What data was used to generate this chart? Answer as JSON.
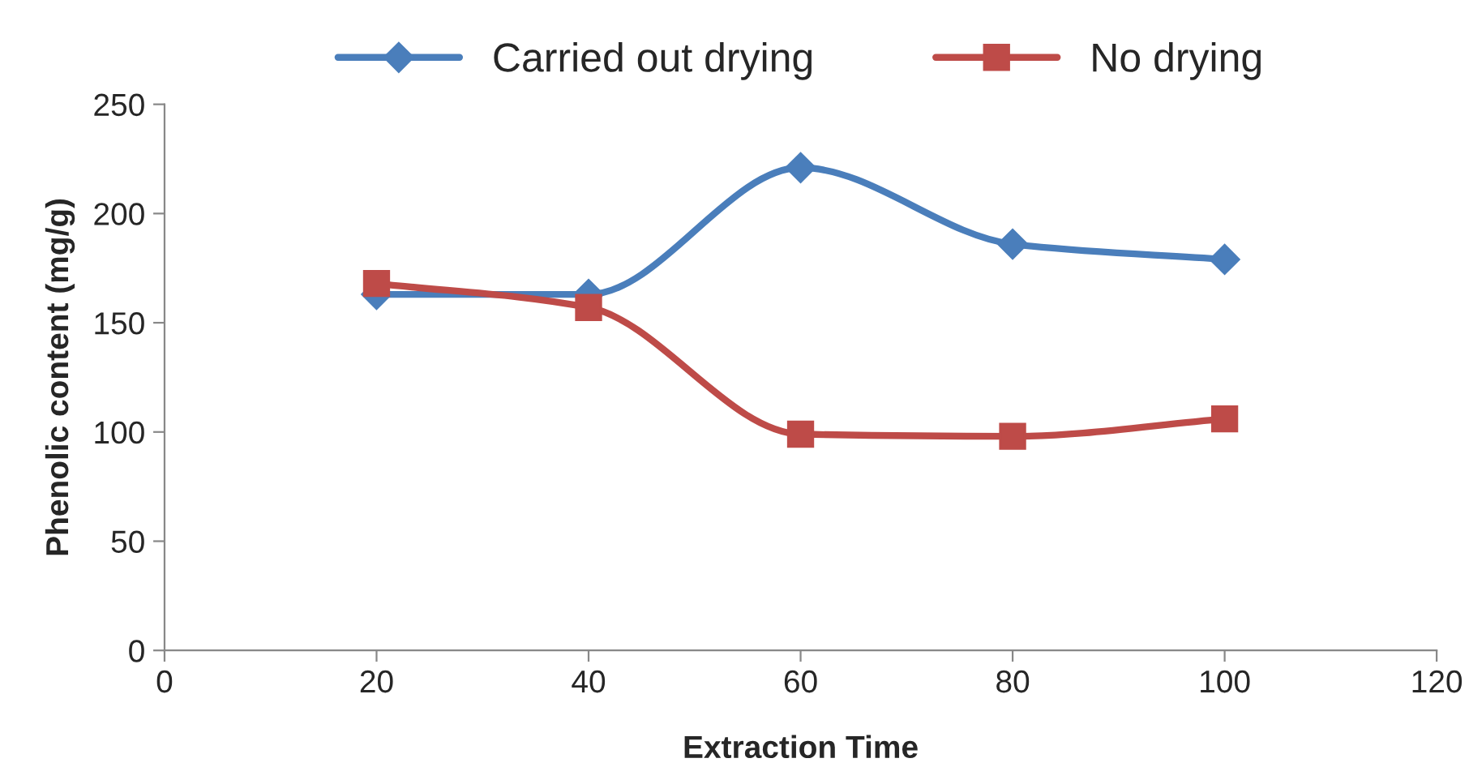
{
  "chart_data": {
    "type": "line",
    "xlabel": "Extraction Time",
    "ylabel": "Phenolic content (mg/g)",
    "x": [
      20,
      40,
      60,
      80,
      100
    ],
    "series": [
      {
        "name": "Carried out drying",
        "color": "#4a7ebb",
        "marker": "diamond",
        "values": [
          163,
          163,
          221,
          186,
          179
        ]
      },
      {
        "name": "No drying",
        "color": "#be4b48",
        "marker": "square",
        "values": [
          168,
          157,
          99,
          98,
          106
        ]
      }
    ],
    "xlim": [
      0,
      120
    ],
    "xticks": [
      0,
      20,
      40,
      60,
      80,
      100,
      120
    ],
    "ylim": [
      0,
      250
    ],
    "yticks": [
      0,
      50,
      100,
      150,
      200,
      250
    ],
    "grid": false,
    "legend": "top",
    "line_style": "solid"
  }
}
